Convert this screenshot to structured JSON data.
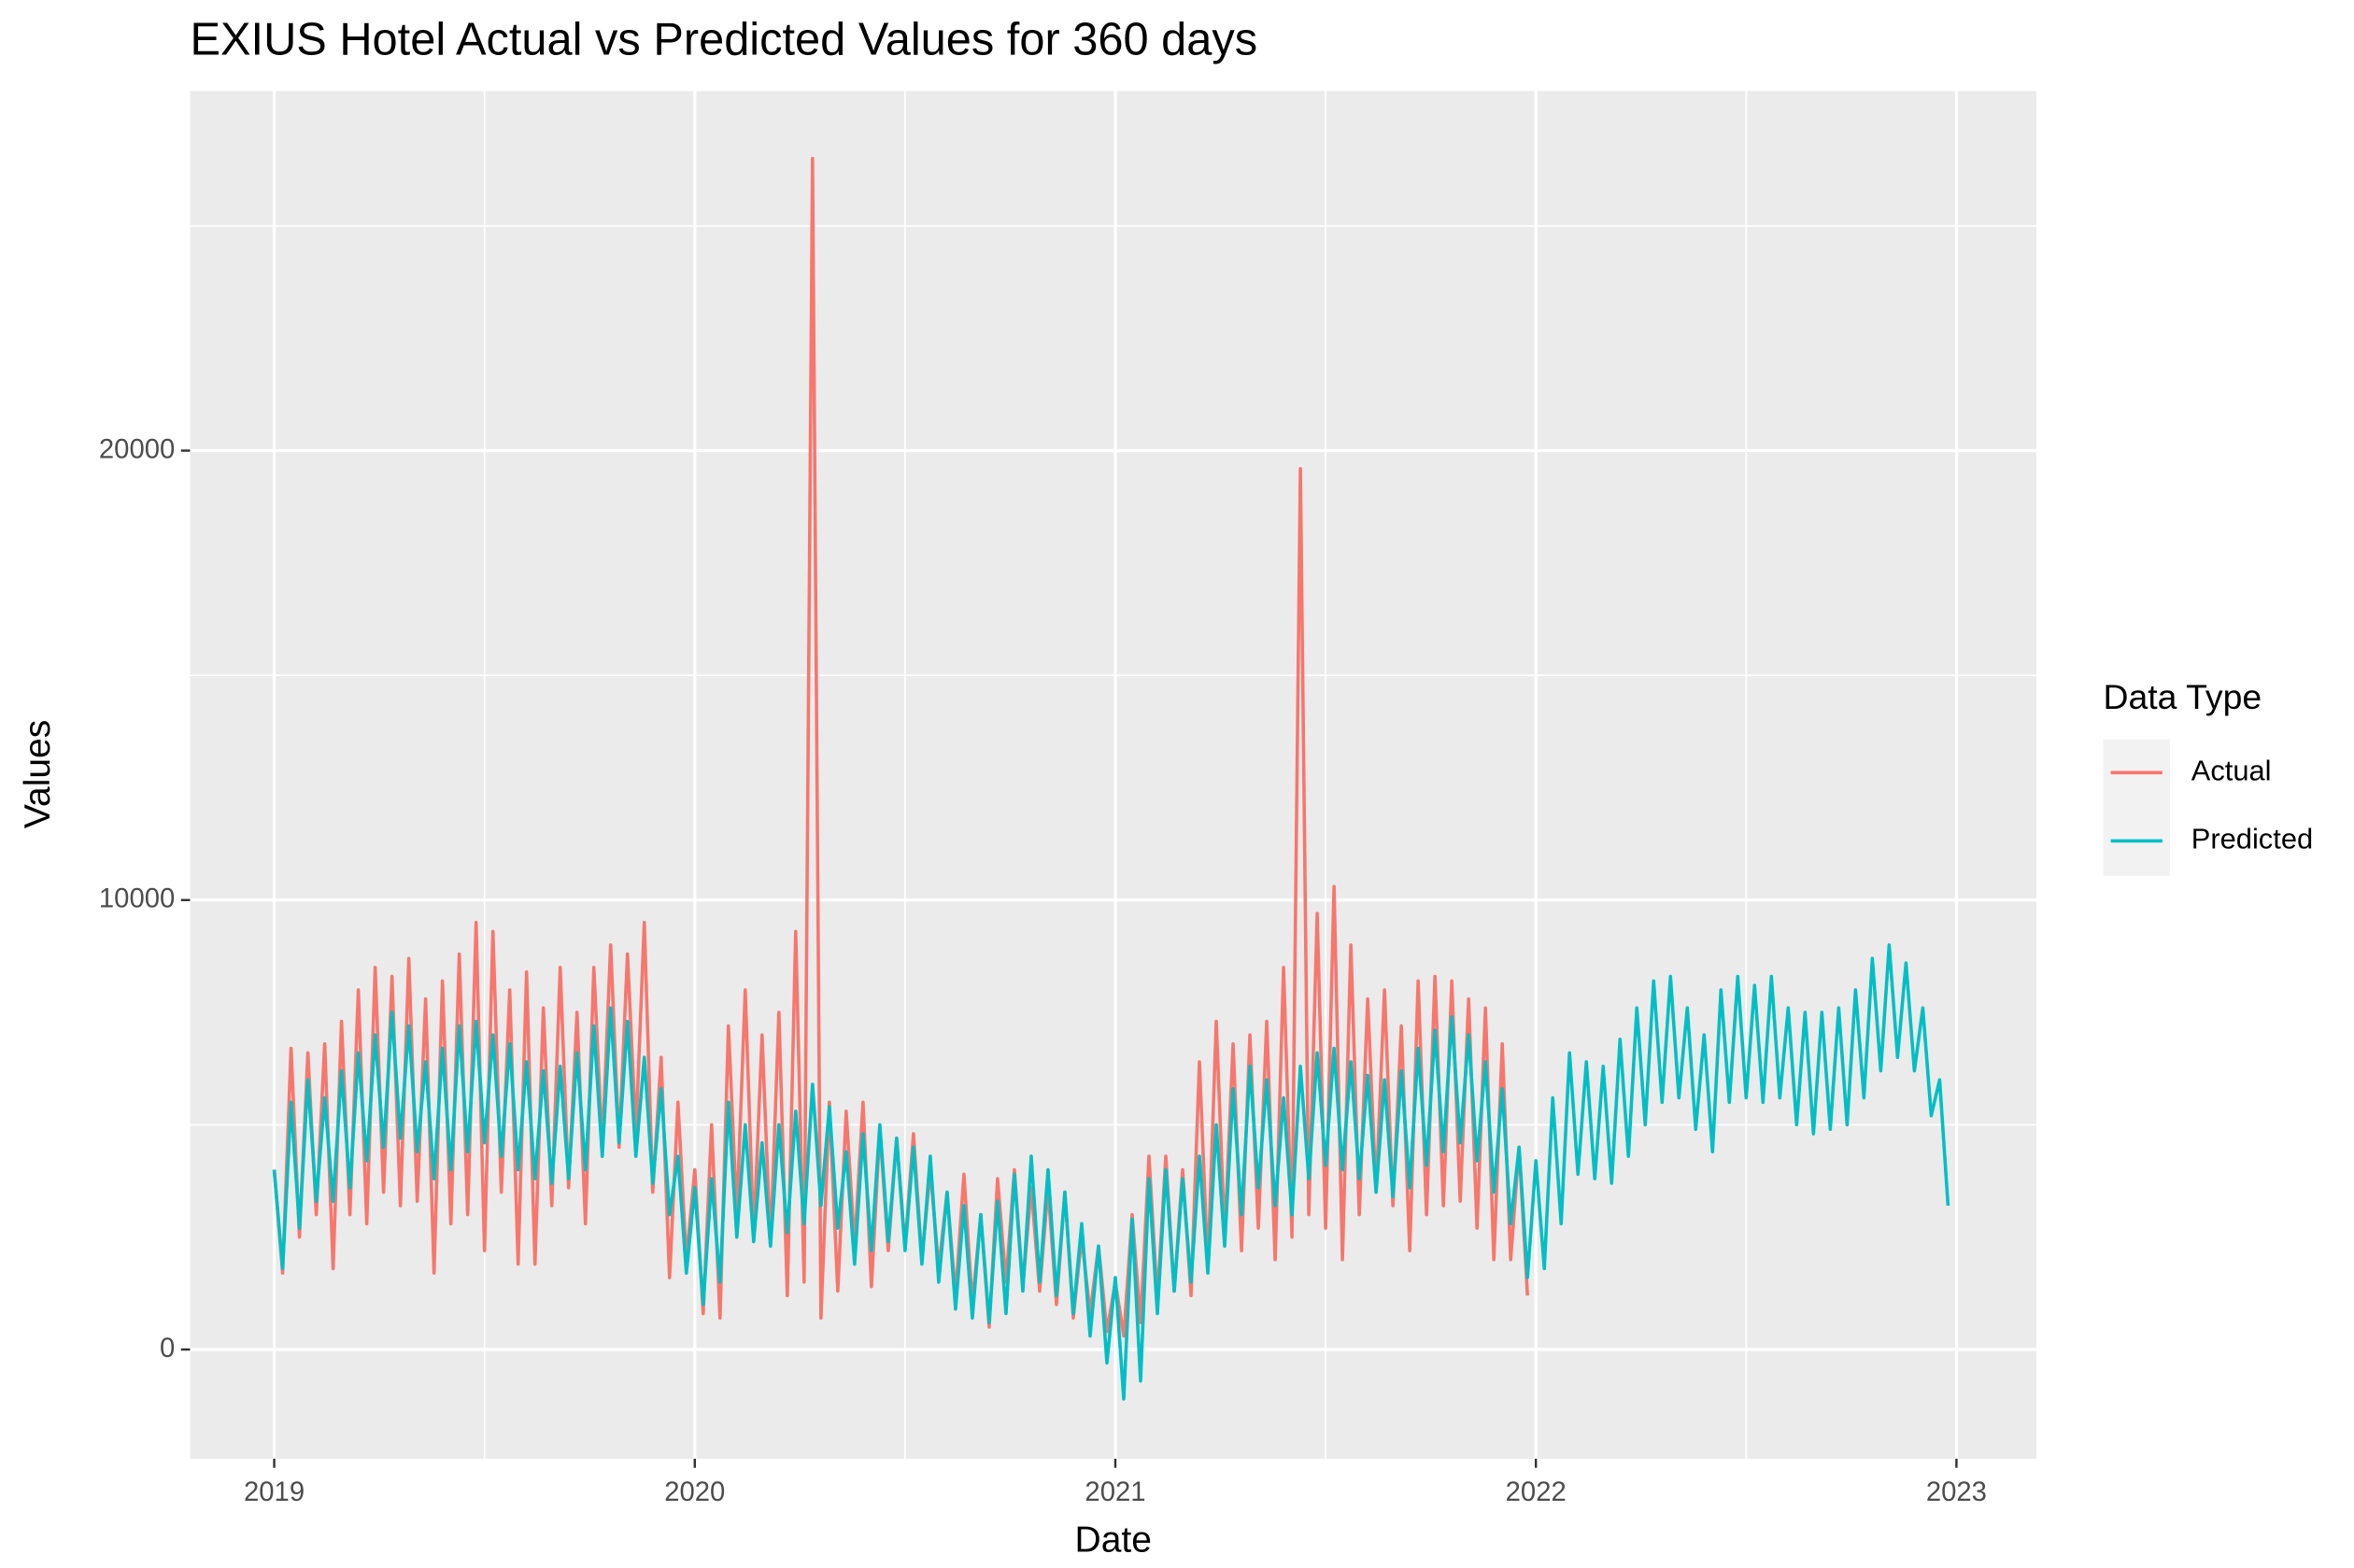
{
  "chart_data": {
    "type": "line",
    "title": "EXIUS Hotel Actual vs Predicted Values for 360 days",
    "x_label": "Date",
    "y_label": "Values",
    "legend_title": "Data Type",
    "legend": "right",
    "grid": true,
    "xlim": [
      2018.8,
      2023.19
    ],
    "xticks": [
      2019,
      2020,
      2021,
      2022,
      2023
    ],
    "x_minor_ticks": [
      2019.5,
      2020.5,
      2021.5,
      2022.5
    ],
    "ylim": [
      -2430,
      28000
    ],
    "yticks": [
      0,
      10000,
      20000
    ],
    "y_minor_ticks": [
      5000,
      15000,
      25000
    ],
    "x": [
      2019,
      2019.02,
      2019.04,
      2019.06,
      2019.08,
      2019.1,
      2019.12,
      2019.14,
      2019.16,
      2019.18,
      2019.2,
      2019.22,
      2019.24,
      2019.26,
      2019.28,
      2019.3,
      2019.32,
      2019.34,
      2019.36,
      2019.38,
      2019.4,
      2019.42,
      2019.44,
      2019.46,
      2019.48,
      2019.5,
      2019.52,
      2019.54,
      2019.56,
      2019.58,
      2019.6,
      2019.62,
      2019.64,
      2019.66,
      2019.68,
      2019.7,
      2019.72,
      2019.74,
      2019.76,
      2019.78,
      2019.8,
      2019.82,
      2019.84,
      2019.86,
      2019.88,
      2019.9,
      2019.92,
      2019.94,
      2019.96,
      2019.98,
      2020,
      2020.02,
      2020.04,
      2020.06,
      2020.08,
      2020.1,
      2020.12,
      2020.14,
      2020.16,
      2020.18,
      2020.2,
      2020.22,
      2020.24,
      2020.26,
      2020.28,
      2020.3,
      2020.32,
      2020.34,
      2020.36,
      2020.38,
      2020.4,
      2020.42,
      2020.44,
      2020.46,
      2020.48,
      2020.5,
      2020.52,
      2020.54,
      2020.56,
      2020.58,
      2020.6,
      2020.62,
      2020.64,
      2020.66,
      2020.68,
      2020.7,
      2020.72,
      2020.74,
      2020.76,
      2020.78,
      2020.8,
      2020.82,
      2020.84,
      2020.86,
      2020.88,
      2020.9,
      2020.92,
      2020.94,
      2020.96,
      2020.98,
      2021,
      2021.02,
      2021.04,
      2021.06,
      2021.08,
      2021.1,
      2021.12,
      2021.14,
      2021.16,
      2021.18,
      2021.2,
      2021.22,
      2021.24,
      2021.26,
      2021.28,
      2021.3,
      2021.32,
      2021.34,
      2021.36,
      2021.38,
      2021.4,
      2021.42,
      2021.44,
      2021.46,
      2021.48,
      2021.5,
      2021.52,
      2021.54,
      2021.56,
      2021.58,
      2021.6,
      2021.62,
      2021.64,
      2021.66,
      2021.68,
      2021.7,
      2021.72,
      2021.74,
      2021.76,
      2021.78,
      2021.8,
      2021.82,
      2021.84,
      2021.86,
      2021.88,
      2021.9,
      2021.92,
      2021.94,
      2021.96,
      2021.98,
      2022,
      2022.02,
      2022.04,
      2022.06,
      2022.08,
      2022.1,
      2022.12,
      2022.14,
      2022.16,
      2022.18,
      2022.2,
      2022.22,
      2022.24,
      2022.26,
      2022.28,
      2022.3,
      2022.32,
      2022.34,
      2022.36,
      2022.38,
      2022.4,
      2022.42,
      2022.44,
      2022.46,
      2022.48,
      2022.5,
      2022.52,
      2022.54,
      2022.56,
      2022.58,
      2022.6,
      2022.62,
      2022.64,
      2022.66,
      2022.68,
      2022.7,
      2022.72,
      2022.74,
      2022.76,
      2022.78,
      2022.8,
      2022.82,
      2022.84,
      2022.86,
      2022.88,
      2022.9,
      2022.92,
      2022.94,
      2022.96,
      2022.98
    ],
    "series": [
      {
        "name": "Actual",
        "color": "#F8766D",
        "values": [
          4000,
          1700,
          6700,
          2500,
          6600,
          3000,
          6800,
          1800,
          7300,
          3000,
          8000,
          2800,
          8500,
          3500,
          8300,
          3200,
          8700,
          3300,
          7800,
          1700,
          8200,
          2800,
          8800,
          3000,
          9500,
          2200,
          9300,
          3500,
          8000,
          1900,
          8400,
          1900,
          7600,
          3200,
          8500,
          3600,
          7500,
          2800,
          8500,
          4500,
          9000,
          4500,
          8800,
          4800,
          9500,
          3500,
          6500,
          1600,
          5500,
          2000,
          4000,
          800,
          5000,
          700,
          7200,
          3000,
          8000,
          2500,
          7000,
          2300,
          7500,
          1200,
          9300,
          1500,
          26500,
          700,
          5500,
          1300,
          5300,
          2300,
          5500,
          1400,
          4900,
          2200,
          4700,
          2300,
          4800,
          2000,
          4000,
          1800,
          3500,
          1200,
          3900,
          1000,
          3000,
          500,
          3800,
          1500,
          4000,
          1400,
          3600,
          1300,
          3600,
          1000,
          3500,
          700,
          2500,
          800,
          2300,
          400,
          1500,
          300,
          3000,
          600,
          4300,
          1100,
          4300,
          1300,
          4000,
          1200,
          6400,
          1800,
          7300,
          2500,
          6800,
          2200,
          7000,
          2700,
          7300,
          2000,
          8500,
          2500,
          19600,
          3000,
          9700,
          2700,
          10300,
          2000,
          9000,
          3000,
          7800,
          3500,
          8000,
          3200,
          7200,
          2200,
          8200,
          3000,
          8300,
          3200,
          8200,
          3300,
          7800,
          2700,
          7600,
          2000,
          6800,
          2000,
          4500,
          1200,
          null,
          null,
          null,
          null,
          null,
          null,
          null,
          null,
          null,
          null,
          null,
          null,
          null,
          null,
          null,
          null,
          null,
          null,
          null,
          null,
          null,
          null,
          null,
          null,
          null,
          null,
          null,
          null,
          null,
          null,
          null,
          null,
          null,
          null,
          null,
          null,
          null,
          null,
          null,
          null,
          null,
          null,
          null,
          null,
          null,
          null,
          null,
          null,
          null,
          null
        ]
      },
      {
        "name": "Predicted",
        "color": "#00BFC4",
        "values": [
          4000,
          1800,
          5500,
          2700,
          6000,
          3300,
          5600,
          3300,
          6200,
          3600,
          6600,
          4200,
          7000,
          4500,
          7500,
          4700,
          7200,
          4400,
          6400,
          3800,
          6700,
          4000,
          7200,
          4400,
          7300,
          4600,
          7000,
          4300,
          6800,
          4000,
          6400,
          3800,
          6200,
          3700,
          6300,
          3800,
          6600,
          4000,
          7200,
          4300,
          7600,
          4600,
          7300,
          4300,
          6500,
          3700,
          5800,
          3000,
          4300,
          1700,
          3600,
          1000,
          3800,
          1500,
          5500,
          2500,
          5000,
          2400,
          4600,
          2300,
          5000,
          2600,
          5300,
          2800,
          5900,
          3200,
          5400,
          2700,
          4400,
          1900,
          4800,
          2200,
          5000,
          2400,
          4700,
          2200,
          4500,
          1900,
          4300,
          1500,
          3500,
          900,
          3200,
          700,
          3000,
          600,
          3300,
          800,
          3900,
          1300,
          4300,
          1500,
          4000,
          1200,
          3500,
          800,
          2800,
          300,
          2300,
          -300,
          1600,
          -1100,
          2900,
          -700,
          3800,
          800,
          4000,
          1300,
          3800,
          1500,
          4300,
          1700,
          5000,
          2300,
          5800,
          3000,
          6300,
          3600,
          6000,
          3200,
          5600,
          3000,
          6300,
          3800,
          6600,
          4100,
          6700,
          4000,
          6400,
          3800,
          6100,
          3500,
          6000,
          3400,
          6200,
          3600,
          6700,
          4100,
          7100,
          4400,
          7400,
          4600,
          7000,
          4200,
          6400,
          3500,
          5800,
          2800,
          4500,
          1600,
          4200,
          1800,
          5600,
          2800,
          6600,
          3900,
          6400,
          3800,
          6300,
          3700,
          6900,
          4300,
          7600,
          5000,
          8200,
          5500,
          8300,
          5600,
          7600,
          4900,
          7000,
          4400,
          8000,
          5500,
          8300,
          5600,
          8100,
          5500,
          8300,
          5600,
          7600,
          5000,
          7500,
          4800,
          7500,
          4900,
          7600,
          5000,
          8000,
          5600,
          8700,
          6200,
          9000,
          6500,
          8600,
          6200,
          7600,
          5200,
          6000,
          3200
        ]
      }
    ]
  }
}
